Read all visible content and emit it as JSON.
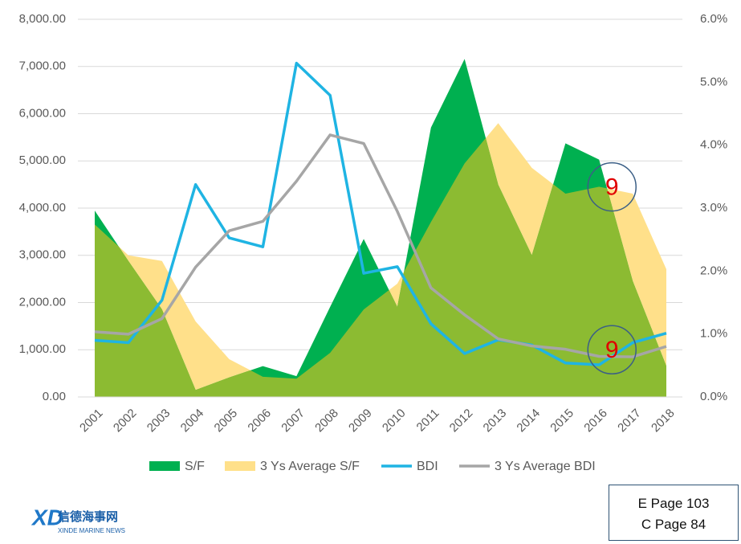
{
  "chart_data": {
    "type": "combo",
    "categories": [
      "2001",
      "2002",
      "2003",
      "2004",
      "2005",
      "2006",
      "2007",
      "2008",
      "2009",
      "2010",
      "2011",
      "2012",
      "2013",
      "2014",
      "2015",
      "2016",
      "2017",
      "2018"
    ],
    "series": [
      {
        "name": "S/F",
        "kind": "area",
        "axis": "y2",
        "color": "#00b050",
        "values": [
          2.96,
          2.16,
          1.39,
          0.11,
          0.31,
          0.49,
          0.33,
          1.43,
          2.51,
          1.43,
          4.28,
          5.37,
          3.37,
          2.25,
          4.03,
          3.77,
          1.84,
          0.49
        ]
      },
      {
        "name": "3 Ys Average S/F",
        "kind": "area",
        "axis": "y2",
        "color": "#ffe08a",
        "values": [
          2.74,
          2.25,
          2.16,
          1.2,
          0.6,
          0.32,
          0.29,
          0.7,
          1.39,
          1.8,
          2.78,
          3.71,
          4.35,
          3.64,
          3.23,
          3.34,
          3.23,
          2.03
        ]
      },
      {
        "name": "BDI",
        "kind": "line",
        "color": "#1fb4e3",
        "values": [
          1200,
          1150,
          2050,
          4500,
          3370,
          3180,
          7070,
          6390,
          2620,
          2760,
          1550,
          920,
          1210,
          1100,
          720,
          680,
          1150,
          1350
        ]
      },
      {
        "name": "3 Ys Average BDI",
        "kind": "line",
        "color": "#a6a6a6",
        "values": [
          1380,
          1330,
          1660,
          2750,
          3520,
          3720,
          4570,
          5550,
          5370,
          3930,
          2310,
          1740,
          1230,
          1080,
          1010,
          860,
          850,
          1070
        ]
      }
    ],
    "ylim": [
      0,
      8000
    ],
    "yticks": [
      {
        "value": 0,
        "label": "0.00"
      },
      {
        "value": 1000,
        "label": "1,000.00"
      },
      {
        "value": 2000,
        "label": "2,000.00"
      },
      {
        "value": 3000,
        "label": "3,000.00"
      },
      {
        "value": 4000,
        "label": "4,000.00"
      },
      {
        "value": 5000,
        "label": "5,000.00"
      },
      {
        "value": 6000,
        "label": "6,000.00"
      },
      {
        "value": 7000,
        "label": "7,000.00"
      },
      {
        "value": 8000,
        "label": "8,000.00"
      }
    ],
    "y2lim": [
      0,
      6
    ],
    "y2ticks": [
      {
        "value": 0,
        "label": "0.0%"
      },
      {
        "value": 1,
        "label": "1.0%"
      },
      {
        "value": 2,
        "label": "2.0%"
      },
      {
        "value": 3,
        "label": "3.0%"
      },
      {
        "value": 4,
        "label": "4.0%"
      },
      {
        "value": 5,
        "label": "5.0%"
      },
      {
        "value": 6,
        "label": "6.0%"
      }
    ],
    "annotations": [
      {
        "text": "9",
        "x": "2016",
        "y": 4450
      },
      {
        "text": "9",
        "x": "2016",
        "y": 1000
      }
    ],
    "legend": "bottom"
  },
  "footer": {
    "pages": [
      "E Page 103",
      "C Page 84"
    ],
    "logo_cn": "信德海事网",
    "logo_en": "XINDE MARINE NEWS"
  }
}
